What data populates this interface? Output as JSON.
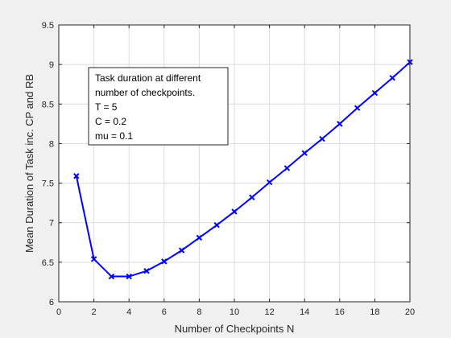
{
  "chart_data": {
    "type": "line",
    "title": "",
    "xlabel": "Number of Checkpoints N",
    "ylabel": "Mean Duration of Task inc. CP and RB",
    "xlim": [
      0,
      20
    ],
    "ylim": [
      6,
      9.5
    ],
    "xticks": [
      0,
      2,
      4,
      6,
      8,
      10,
      12,
      14,
      16,
      18,
      20
    ],
    "yticks": [
      6,
      6.5,
      7,
      7.5,
      8,
      8.5,
      9,
      9.5
    ],
    "xtick_labels": [
      "0",
      "2",
      "4",
      "6",
      "8",
      "10",
      "12",
      "14",
      "16",
      "18",
      "20"
    ],
    "ytick_labels": [
      "6",
      "6.5",
      "7",
      "7.5",
      "8",
      "8.5",
      "9",
      "9.5"
    ],
    "grid": true,
    "line_color": "#0000ff",
    "marker": "x",
    "series": [
      {
        "x": [
          1,
          2,
          3,
          4,
          5,
          6,
          7,
          8,
          9,
          10,
          11,
          12,
          13,
          14,
          15,
          16,
          17,
          18,
          19,
          20
        ],
        "values": [
          7.59,
          6.54,
          6.32,
          6.32,
          6.39,
          6.51,
          6.65,
          6.81,
          6.97,
          7.14,
          7.32,
          7.51,
          7.69,
          7.88,
          8.06,
          8.25,
          8.45,
          8.64,
          8.83,
          9.03
        ]
      }
    ],
    "annotation": {
      "lines": [
        "Task duration at different",
        "number of checkpoints.",
        "T = 5",
        "C = 0.2",
        "mu = 0.1"
      ]
    }
  }
}
